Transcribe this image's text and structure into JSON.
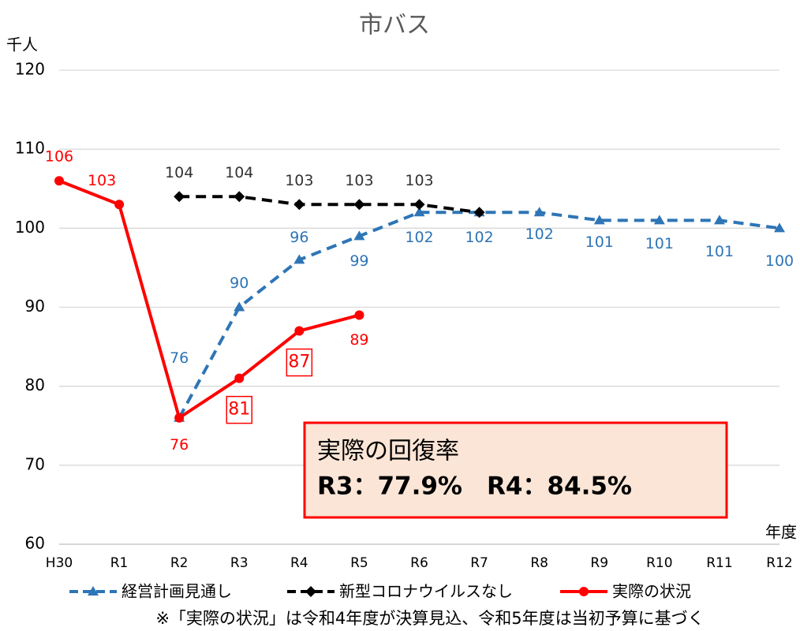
{
  "chart_data": {
    "type": "line",
    "title": "市バス",
    "y_label": "千人",
    "x_label": "年度",
    "categories": [
      "H30",
      "R1",
      "R2",
      "R3",
      "R4",
      "R5",
      "R6",
      "R7",
      "R8",
      "R9",
      "R10",
      "R11",
      "R12"
    ],
    "series": [
      {
        "name": "経営計画見通し",
        "color": "#2e75b6",
        "marker": "triangle",
        "dashed": true,
        "values": [
          null,
          null,
          76,
          90,
          96,
          99,
          102,
          102,
          102,
          101,
          101,
          101,
          100
        ]
      },
      {
        "name": "新型コロナウイルスなし",
        "color": "#000000",
        "marker": "diamond",
        "dashed": true,
        "values": [
          null,
          null,
          104,
          104,
          103,
          103,
          103,
          102,
          null,
          null,
          null,
          null,
          null
        ],
        "value_labels": [
          null,
          null,
          "104",
          "104",
          "103",
          "103",
          "103",
          null,
          null,
          null,
          null,
          null,
          null
        ]
      },
      {
        "name": "実際の状況",
        "color": "#ff0000",
        "marker": "circle",
        "dashed": false,
        "values": [
          106,
          103,
          76,
          81,
          87,
          89,
          null,
          null,
          null,
          null,
          null,
          null,
          null
        ]
      }
    ],
    "ylim": [
      60,
      120
    ],
    "yticks": [
      60,
      70,
      80,
      90,
      100,
      110,
      120
    ],
    "grid": true,
    "annotation": {
      "title": "実際の回復率",
      "text": "R3：77.9%　R4：84.5%"
    },
    "footnote": "※「実際の状況」は令和4年度が決算見込、令和5年度は当初予算に基づく"
  }
}
